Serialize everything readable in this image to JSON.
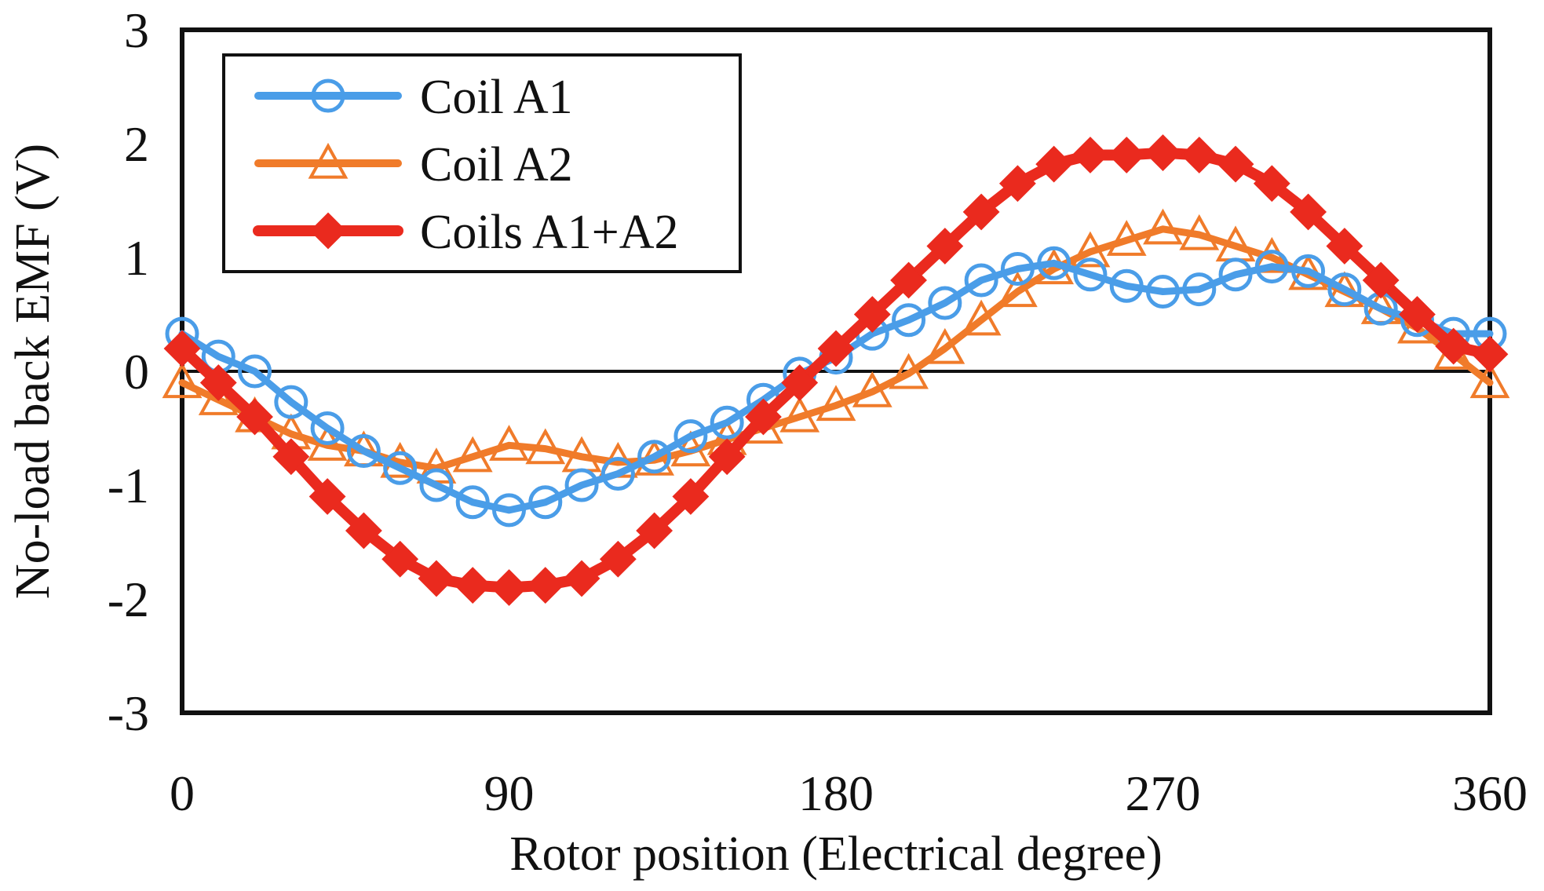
{
  "chart_data": {
    "type": "line",
    "title": "",
    "xlabel": "Rotor position (Electrical degree)",
    "ylabel": "No-load back EMF (V)",
    "xlim": [
      0,
      360
    ],
    "ylim": [
      -3,
      3
    ],
    "xticks": [
      0,
      90,
      180,
      270,
      360
    ],
    "yticks": [
      -3,
      -2,
      -1,
      0,
      1,
      2,
      3
    ],
    "grid": false,
    "zero_line": true,
    "legend_position": "top-left",
    "x": [
      0,
      10,
      20,
      30,
      40,
      50,
      60,
      70,
      80,
      90,
      100,
      110,
      120,
      130,
      140,
      150,
      160,
      170,
      180,
      190,
      200,
      210,
      220,
      230,
      240,
      250,
      260,
      270,
      280,
      290,
      300,
      310,
      320,
      330,
      340,
      350,
      360
    ],
    "series": [
      {
        "name": "Coil A1",
        "color": "#4a9de8",
        "marker": "circle",
        "values": [
          0.33,
          0.13,
          0.0,
          -0.27,
          -0.5,
          -0.7,
          -0.85,
          -1.0,
          -1.15,
          -1.22,
          -1.15,
          -1.0,
          -0.9,
          -0.75,
          -0.57,
          -0.45,
          -0.25,
          -0.02,
          0.12,
          0.33,
          0.45,
          0.6,
          0.8,
          0.9,
          0.95,
          0.85,
          0.75,
          0.7,
          0.72,
          0.85,
          0.92,
          0.88,
          0.72,
          0.55,
          0.45,
          0.33,
          0.33
        ]
      },
      {
        "name": "Coil A2",
        "color": "#f07b2a",
        "marker": "triangle",
        "values": [
          -0.1,
          -0.25,
          -0.4,
          -0.55,
          -0.65,
          -0.7,
          -0.8,
          -0.85,
          -0.75,
          -0.65,
          -0.68,
          -0.75,
          -0.8,
          -0.78,
          -0.7,
          -0.6,
          -0.5,
          -0.4,
          -0.3,
          -0.18,
          -0.02,
          0.2,
          0.45,
          0.7,
          0.9,
          1.05,
          1.15,
          1.25,
          1.2,
          1.1,
          1.0,
          0.85,
          0.7,
          0.55,
          0.38,
          0.15,
          -0.1
        ]
      },
      {
        "name": "Coils A1+A2",
        "color": "#ea2a1e",
        "marker": "diamond",
        "values": [
          0.2,
          -0.1,
          -0.4,
          -0.75,
          -1.1,
          -1.4,
          -1.65,
          -1.82,
          -1.88,
          -1.9,
          -1.88,
          -1.82,
          -1.65,
          -1.4,
          -1.1,
          -0.75,
          -0.4,
          -0.1,
          0.2,
          0.5,
          0.8,
          1.1,
          1.4,
          1.65,
          1.82,
          1.9,
          1.9,
          1.92,
          1.9,
          1.82,
          1.65,
          1.4,
          1.1,
          0.8,
          0.5,
          0.22,
          0.15
        ]
      }
    ]
  }
}
